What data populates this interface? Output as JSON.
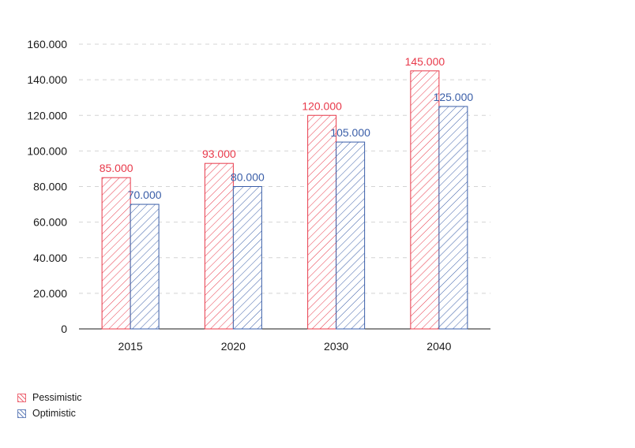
{
  "chart_data": {
    "type": "bar",
    "categories": [
      "2015",
      "2020",
      "2030",
      "2040"
    ],
    "series": [
      {
        "name": "Pessimistic",
        "values": [
          85000,
          93000,
          120000,
          145000
        ],
        "labels": [
          "85.000",
          "93.000",
          "120.000",
          "145.000"
        ],
        "color": "#e8394a"
      },
      {
        "name": "Optimistic",
        "values": [
          70000,
          80000,
          105000,
          125000
        ],
        "labels": [
          "70.000",
          "80.000",
          "105.000",
          "125.000"
        ],
        "color": "#3a5ea8"
      }
    ],
    "yticks": [
      0,
      20000,
      40000,
      60000,
      80000,
      100000,
      120000,
      140000,
      160000
    ],
    "ytick_labels": [
      "0",
      "20.000",
      "40.000",
      "60.000",
      "80.000",
      "100.000",
      "120.000",
      "140.000",
      "160.000"
    ],
    "ylim": [
      0,
      160000
    ],
    "grid": true,
    "legend_position": "bottom-left",
    "pattern": "diagonal-hatch"
  }
}
